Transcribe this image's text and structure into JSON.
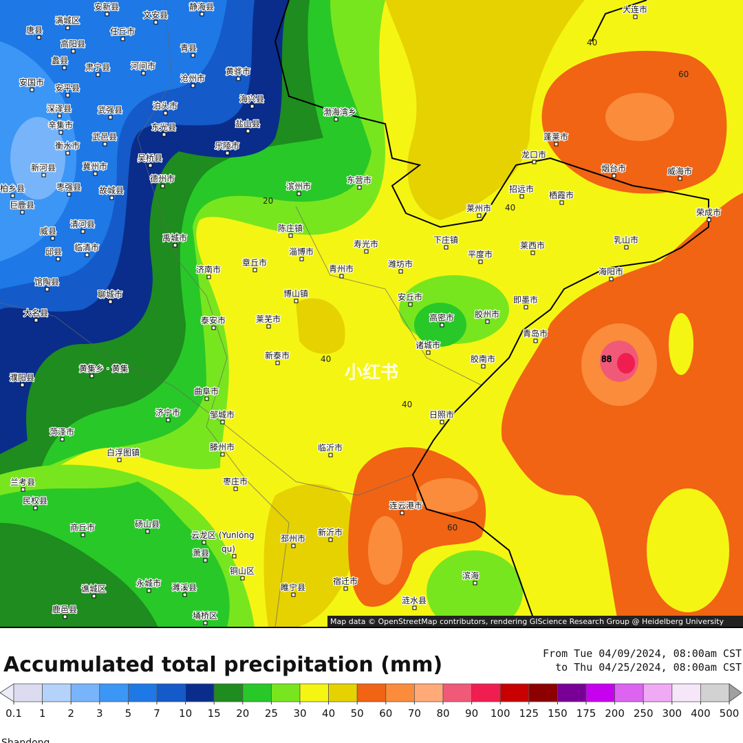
{
  "map": {
    "places": [
      "安新县",
      "文安县",
      "静海县",
      "满城区",
      "唐县",
      "任丘市",
      "高阳县",
      "青县",
      "蠡县",
      "肃宁县",
      "河间市",
      "黄骅市",
      "沧州市",
      "安国市",
      "安平县",
      "海兴县",
      "泊头市",
      "深泽县",
      "武强县",
      "辛集市",
      "盐山县",
      "东光县",
      "武邑县",
      "衡水市",
      "乐陵市",
      "吴桥县",
      "冀州市",
      "新河县",
      "德州市",
      "枣强县",
      "故城县",
      "柏乡县",
      "巨鹿县",
      "清河县",
      "威县",
      "临清市",
      "邱县",
      "馆陶县",
      "聊城市",
      "大名县",
      "禹城市",
      "济南市",
      "泰安市",
      "莱芜市",
      "新泰市",
      "曲阜市",
      "济宁市",
      "邹城市",
      "菏泽市",
      "滕州市",
      "白浮图镇",
      "枣庄市",
      "兰考县",
      "民权县",
      "商丘市",
      "砀山县",
      "萧县",
      "铜山区",
      "永城市",
      "濉溪县",
      "谯城区",
      "鹿邑县",
      "埇桥区",
      "邳州市",
      "新沂市",
      "睢宁县",
      "宿迁市",
      "涟水县",
      "滨海",
      "连云港市",
      "临沂市",
      "日照市",
      "诸城市",
      "胶南市",
      "青岛市",
      "即墨市",
      "高密市",
      "胶州市",
      "安丘市",
      "潍坊市",
      "青州市",
      "淄博市",
      "章丘市",
      "博山镇",
      "陈庄镇",
      "滨州市",
      "东营市",
      "寿光市",
      "下庄镇",
      "平度市",
      "莱州市",
      "招远市",
      "栖霞市",
      "莱西市",
      "龙口市",
      "蓬莱市",
      "烟台市",
      "威海市",
      "荣成市",
      "乳山市",
      "海阳市",
      "大连市",
      "渤海湾乡",
      "濮阳县",
      "黄集乡 · 黄集",
      "云龙区 (Yunlóng",
      "qu)"
    ],
    "contour_labels": [
      40,
      60,
      20,
      40,
      40,
      40,
      60,
      88
    ],
    "watermark": "小红书",
    "attribution": "Map data © OpenStreetMap contributors, rendering GIScience Research Group @ Heidelberg University"
  },
  "legend": {
    "title": "Accumulated total precipitation (mm)",
    "period_from": "From Tue 04/09/2024, 08:00am CST",
    "period_to": "to Thu 04/25/2024, 08:00am CST",
    "ticks": [
      0.1,
      1,
      2,
      3,
      5,
      7,
      10,
      15,
      20,
      25,
      30,
      40,
      50,
      60,
      70,
      80,
      90,
      100,
      125,
      150,
      175,
      200,
      250,
      300,
      400,
      500
    ],
    "colors": [
      "#ececf8",
      "#dcdcf0",
      "#b4d2fa",
      "#78b4fa",
      "#3c96f5",
      "#1e78e6",
      "#145ac8",
      "#0a2d8c",
      "#1e8c1e",
      "#28c828",
      "#78e61e",
      "#f5f514",
      "#e6d200",
      "#f06414",
      "#fa8c3c",
      "#ffaa78",
      "#f05a78",
      "#f01e50",
      "#c80000",
      "#8c0000",
      "#780096",
      "#c800f0",
      "#dc64f0",
      "#f0aaf5",
      "#f5e6fa",
      "#d2d2d2",
      "#a0a0a0"
    ]
  },
  "footer": "Shandong"
}
